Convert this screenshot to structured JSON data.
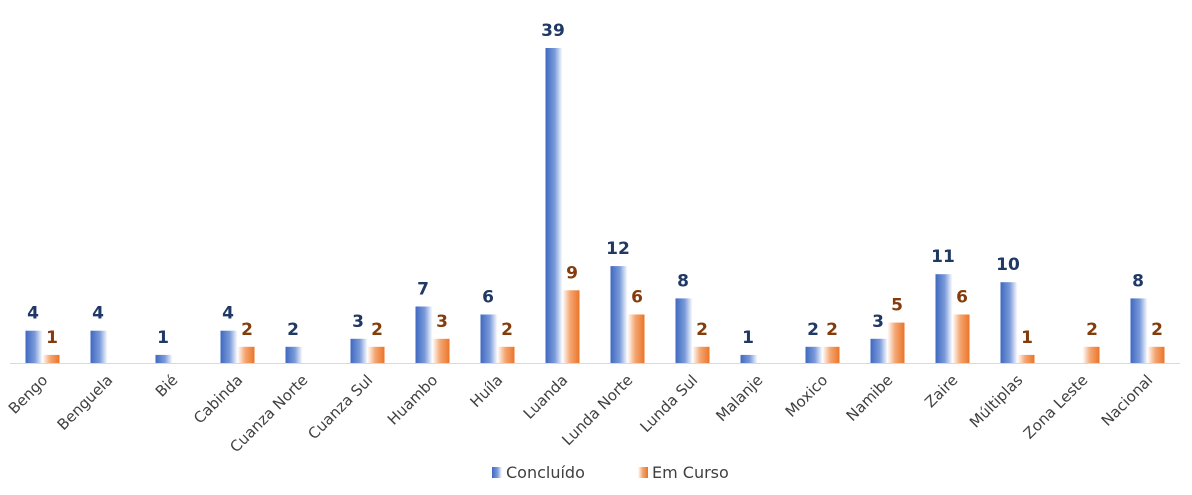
{
  "chart_data": {
    "type": "bar",
    "categories": [
      "Bengo",
      "Benguela",
      "Bié",
      "Cabinda",
      "Cuanza Norte",
      "Cuanza Sul",
      "Huambo",
      "Huíla",
      "Luanda",
      "Lunda Norte",
      "Lunda Sul",
      "Malanje",
      "Moxico",
      "Namibe",
      "Zaire",
      "Múltiplas",
      "Zona Leste",
      "Nacional"
    ],
    "series": [
      {
        "name": "Concluído",
        "color": "#4472C4",
        "label_color": "#1F3864",
        "values": [
          4,
          4,
          1,
          4,
          2,
          3,
          7,
          6,
          39,
          12,
          8,
          1,
          2,
          3,
          11,
          10,
          null,
          8
        ]
      },
      {
        "name": "Em Curso",
        "color": "#ED7D31",
        "label_color": "#843C0C",
        "values": [
          1,
          null,
          null,
          2,
          null,
          2,
          3,
          2,
          9,
          6,
          2,
          null,
          2,
          5,
          6,
          1,
          2,
          2
        ]
      }
    ],
    "ylim": [
      0,
      39
    ],
    "legend": "bottom",
    "grid": false
  }
}
